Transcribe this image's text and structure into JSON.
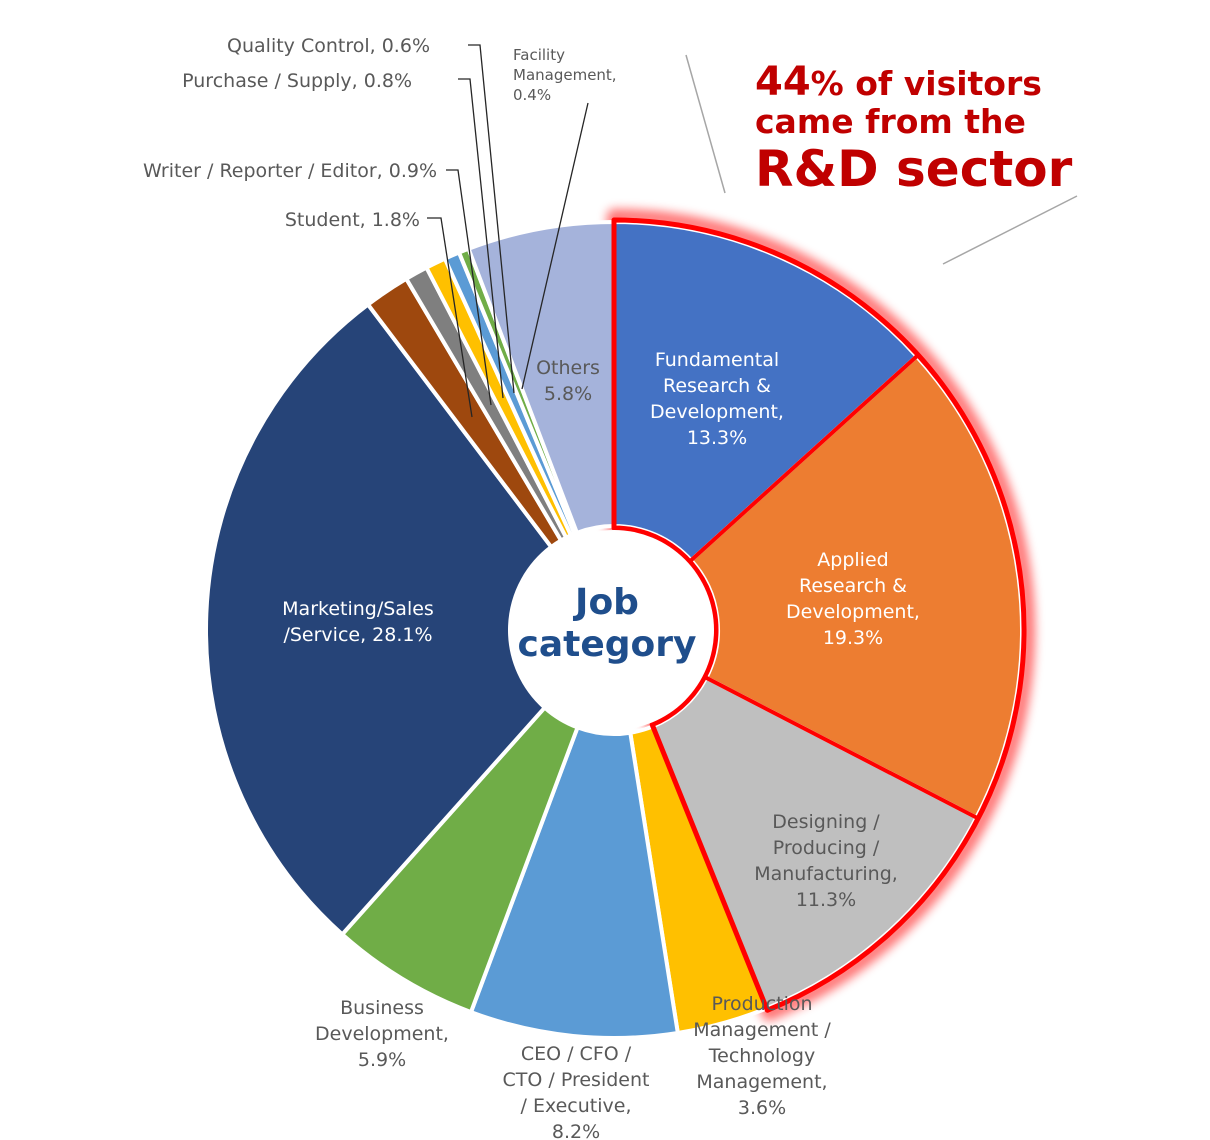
{
  "chart_data": {
    "type": "pie",
    "donut": true,
    "center_label": [
      "Job",
      "category"
    ],
    "headline": {
      "percent": "44",
      "line1_rest": "% of visitors",
      "line2": "came from the",
      "line3": "R&D sector"
    },
    "highlight_group": [
      "Fundamental Research & Development",
      "Applied Research & Development",
      "Designing / Producing / Manufacturing"
    ],
    "highlight_color": "#ff0000",
    "slices": [
      {
        "name": "Fundamental Research & Development",
        "value": 13.3,
        "color": "#4472c4",
        "label_lines": [
          "Fundamental",
          "Research &",
          "Development,",
          "13.3%"
        ],
        "label_color": "#ffffff"
      },
      {
        "name": "Applied Research & Development",
        "value": 19.3,
        "color": "#ed7d31",
        "label_lines": [
          "Applied",
          "Research &",
          "Development,",
          "19.3%"
        ],
        "label_color": "#ffffff"
      },
      {
        "name": "Designing / Producing / Manufacturing",
        "value": 11.3,
        "color": "#bfbfbf",
        "label_lines": [
          "Designing /",
          "Producing /",
          "Manufacturing,",
          "11.3%"
        ],
        "label_color": "#595959"
      },
      {
        "name": "Production Management / Technology Management",
        "value": 3.6,
        "color": "#ffc000",
        "label_lines": [
          "Production",
          "Management /",
          "Technology",
          "Management,",
          "3.6%"
        ],
        "label_color": "#595959"
      },
      {
        "name": "CEO / CFO / CTO / President / Executive",
        "value": 8.2,
        "color": "#5b9bd5",
        "label_lines": [
          "CEO / CFO /",
          "CTO / President",
          "/ Executive,",
          "8.2%"
        ],
        "label_color": "#595959"
      },
      {
        "name": "Business Development",
        "value": 5.9,
        "color": "#70ad47",
        "label_lines": [
          "Business",
          "Development,",
          "5.9%"
        ],
        "label_color": "#595959"
      },
      {
        "name": "Marketing/Sales/Service",
        "value": 28.1,
        "color": "#264478",
        "label_lines": [
          "Marketing/Sales",
          "/Service, 28.1%"
        ],
        "label_color": "#ffffff"
      },
      {
        "name": "Student",
        "value": 1.8,
        "color": "#9e480e",
        "label_lines": [
          "Student, 1.8%"
        ],
        "label_color": "#595959"
      },
      {
        "name": "Writer / Reporter / Editor",
        "value": 0.9,
        "color": "#7f7f7f",
        "label_lines": [
          "Writer / Reporter / Editor, 0.9%"
        ],
        "label_color": "#595959"
      },
      {
        "name": "Purchase / Supply",
        "value": 0.8,
        "color": "#ffc000",
        "label_lines": [
          "Purchase / Supply, 0.8%"
        ],
        "label_color": "#595959"
      },
      {
        "name": "Quality Control",
        "value": 0.6,
        "color": "#5b9bd5",
        "label_lines": [
          "Quality Control, 0.6%"
        ],
        "label_color": "#595959"
      },
      {
        "name": "Facility Management",
        "value": 0.4,
        "color": "#70ad47",
        "label_lines": [
          "Facility",
          "Management,",
          "0.4%"
        ],
        "label_color": "#595959"
      },
      {
        "name": "Others",
        "value": 5.8,
        "color": "#a5b3db",
        "label_lines": [
          "Others",
          "5.8%"
        ],
        "label_color": "#595959"
      }
    ]
  }
}
